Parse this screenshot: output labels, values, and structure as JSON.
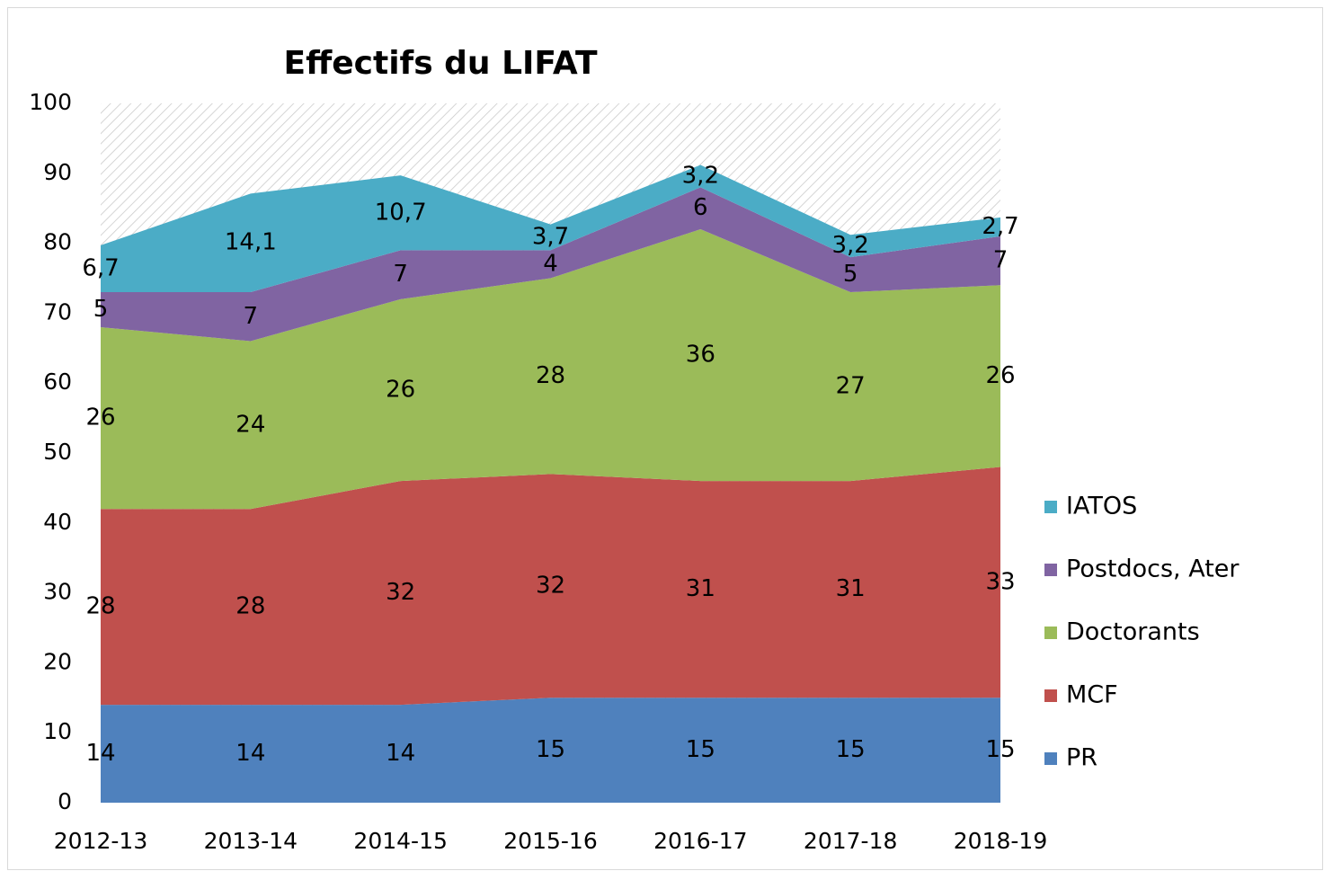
{
  "chart_data": {
    "type": "stacked-area",
    "title": "Effectifs du LIFAT",
    "categories": [
      "2012-13",
      "2013-14",
      "2014-15",
      "2015-16",
      "2016-17",
      "2017-18",
      "2018-19"
    ],
    "series": [
      {
        "name": "PR",
        "color": "#4f81bd",
        "values": [
          14,
          14,
          14,
          15,
          15,
          15,
          15
        ]
      },
      {
        "name": "MCF",
        "color": "#c0504d",
        "values": [
          28,
          28,
          32,
          32,
          31,
          31,
          33
        ]
      },
      {
        "name": "Doctorants",
        "color": "#9bbb59",
        "values": [
          26,
          24,
          26,
          28,
          36,
          27,
          26
        ]
      },
      {
        "name": "Postdocs, Ater",
        "color": "#8064a2",
        "values": [
          5,
          7,
          7,
          4,
          6,
          5,
          7
        ]
      },
      {
        "name": "IATOS",
        "color": "#4bacc6",
        "values": [
          6.7,
          14.1,
          10.7,
          3.7,
          3.2,
          3.2,
          2.7
        ],
        "value_labels": [
          "6,7",
          "14,1",
          "10,7",
          "3,7",
          "3,2",
          "3,2",
          "2,7"
        ]
      }
    ],
    "ylim": [
      0,
      100
    ],
    "yticks": [
      0,
      10,
      20,
      30,
      40,
      50,
      60,
      70,
      80,
      90,
      100
    ],
    "legend": "right"
  }
}
